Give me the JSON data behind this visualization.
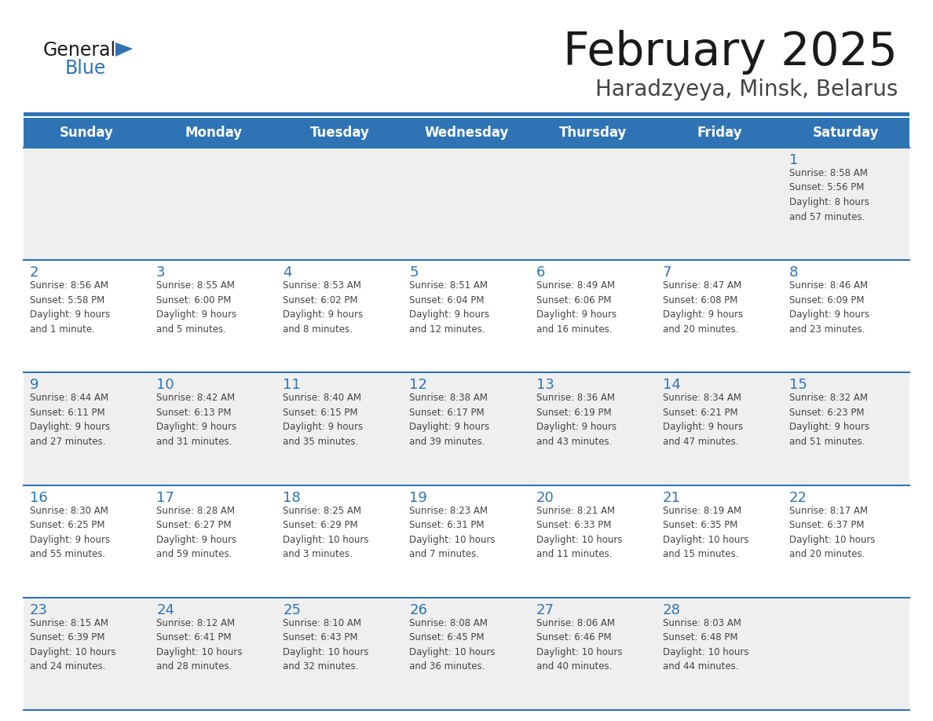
{
  "title": "February 2025",
  "subtitle": "Haradzyeya, Minsk, Belarus",
  "days_of_week": [
    "Sunday",
    "Monday",
    "Tuesday",
    "Wednesday",
    "Thursday",
    "Friday",
    "Saturday"
  ],
  "header_bg": "#2E74B5",
  "header_text": "#FFFFFF",
  "row_bg_odd": "#EFEFEF",
  "row_bg_even": "#FFFFFF",
  "separator_color": "#2E74B5",
  "day_number_color": "#2E74B5",
  "cell_text_color": "#444444",
  "title_color": "#1a1a1a",
  "subtitle_color": "#444444",
  "logo_general_color": "#1a1a1a",
  "logo_blue_color": "#2E74B5",
  "weeks": [
    {
      "days": [
        {
          "day": null,
          "info": null
        },
        {
          "day": null,
          "info": null
        },
        {
          "day": null,
          "info": null
        },
        {
          "day": null,
          "info": null
        },
        {
          "day": null,
          "info": null
        },
        {
          "day": null,
          "info": null
        },
        {
          "day": 1,
          "info": "Sunrise: 8:58 AM\nSunset: 5:56 PM\nDaylight: 8 hours\nand 57 minutes."
        }
      ]
    },
    {
      "days": [
        {
          "day": 2,
          "info": "Sunrise: 8:56 AM\nSunset: 5:58 PM\nDaylight: 9 hours\nand 1 minute."
        },
        {
          "day": 3,
          "info": "Sunrise: 8:55 AM\nSunset: 6:00 PM\nDaylight: 9 hours\nand 5 minutes."
        },
        {
          "day": 4,
          "info": "Sunrise: 8:53 AM\nSunset: 6:02 PM\nDaylight: 9 hours\nand 8 minutes."
        },
        {
          "day": 5,
          "info": "Sunrise: 8:51 AM\nSunset: 6:04 PM\nDaylight: 9 hours\nand 12 minutes."
        },
        {
          "day": 6,
          "info": "Sunrise: 8:49 AM\nSunset: 6:06 PM\nDaylight: 9 hours\nand 16 minutes."
        },
        {
          "day": 7,
          "info": "Sunrise: 8:47 AM\nSunset: 6:08 PM\nDaylight: 9 hours\nand 20 minutes."
        },
        {
          "day": 8,
          "info": "Sunrise: 8:46 AM\nSunset: 6:09 PM\nDaylight: 9 hours\nand 23 minutes."
        }
      ]
    },
    {
      "days": [
        {
          "day": 9,
          "info": "Sunrise: 8:44 AM\nSunset: 6:11 PM\nDaylight: 9 hours\nand 27 minutes."
        },
        {
          "day": 10,
          "info": "Sunrise: 8:42 AM\nSunset: 6:13 PM\nDaylight: 9 hours\nand 31 minutes."
        },
        {
          "day": 11,
          "info": "Sunrise: 8:40 AM\nSunset: 6:15 PM\nDaylight: 9 hours\nand 35 minutes."
        },
        {
          "day": 12,
          "info": "Sunrise: 8:38 AM\nSunset: 6:17 PM\nDaylight: 9 hours\nand 39 minutes."
        },
        {
          "day": 13,
          "info": "Sunrise: 8:36 AM\nSunset: 6:19 PM\nDaylight: 9 hours\nand 43 minutes."
        },
        {
          "day": 14,
          "info": "Sunrise: 8:34 AM\nSunset: 6:21 PM\nDaylight: 9 hours\nand 47 minutes."
        },
        {
          "day": 15,
          "info": "Sunrise: 8:32 AM\nSunset: 6:23 PM\nDaylight: 9 hours\nand 51 minutes."
        }
      ]
    },
    {
      "days": [
        {
          "day": 16,
          "info": "Sunrise: 8:30 AM\nSunset: 6:25 PM\nDaylight: 9 hours\nand 55 minutes."
        },
        {
          "day": 17,
          "info": "Sunrise: 8:28 AM\nSunset: 6:27 PM\nDaylight: 9 hours\nand 59 minutes."
        },
        {
          "day": 18,
          "info": "Sunrise: 8:25 AM\nSunset: 6:29 PM\nDaylight: 10 hours\nand 3 minutes."
        },
        {
          "day": 19,
          "info": "Sunrise: 8:23 AM\nSunset: 6:31 PM\nDaylight: 10 hours\nand 7 minutes."
        },
        {
          "day": 20,
          "info": "Sunrise: 8:21 AM\nSunset: 6:33 PM\nDaylight: 10 hours\nand 11 minutes."
        },
        {
          "day": 21,
          "info": "Sunrise: 8:19 AM\nSunset: 6:35 PM\nDaylight: 10 hours\nand 15 minutes."
        },
        {
          "day": 22,
          "info": "Sunrise: 8:17 AM\nSunset: 6:37 PM\nDaylight: 10 hours\nand 20 minutes."
        }
      ]
    },
    {
      "days": [
        {
          "day": 23,
          "info": "Sunrise: 8:15 AM\nSunset: 6:39 PM\nDaylight: 10 hours\nand 24 minutes."
        },
        {
          "day": 24,
          "info": "Sunrise: 8:12 AM\nSunset: 6:41 PM\nDaylight: 10 hours\nand 28 minutes."
        },
        {
          "day": 25,
          "info": "Sunrise: 8:10 AM\nSunset: 6:43 PM\nDaylight: 10 hours\nand 32 minutes."
        },
        {
          "day": 26,
          "info": "Sunrise: 8:08 AM\nSunset: 6:45 PM\nDaylight: 10 hours\nand 36 minutes."
        },
        {
          "day": 27,
          "info": "Sunrise: 8:06 AM\nSunset: 6:46 PM\nDaylight: 10 hours\nand 40 minutes."
        },
        {
          "day": 28,
          "info": "Sunrise: 8:03 AM\nSunset: 6:48 PM\nDaylight: 10 hours\nand 44 minutes."
        },
        {
          "day": null,
          "info": null
        }
      ]
    }
  ]
}
